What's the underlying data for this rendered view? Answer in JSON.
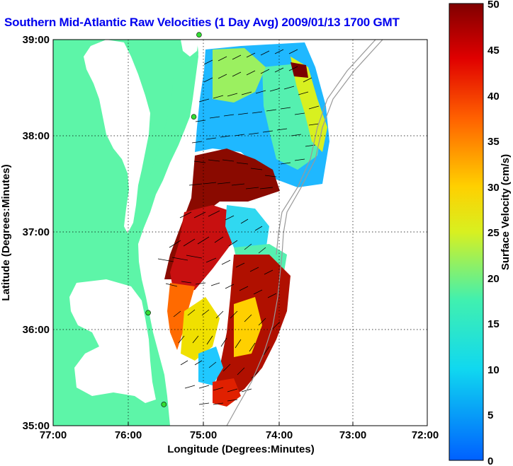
{
  "title": "Southern Mid-Atlantic Raw Velocities (1 Day Avg) 2009/01/13 1700 GMT",
  "axes": {
    "xlabel": "Longitude (Degrees:Minutes)",
    "ylabel": "Latitude (Degrees:Minutes)",
    "xticks": [
      "77:00",
      "76:00",
      "75:00",
      "74:00",
      "73:00",
      "72:00"
    ],
    "yticks": [
      "39:00",
      "38:00",
      "37:00",
      "36:00",
      "35:00"
    ]
  },
  "colorbar": {
    "label": "Surface Velocity (cm/s)",
    "ticks": [
      "50",
      "45",
      "40",
      "35",
      "30",
      "25",
      "20",
      "15",
      "10",
      "5",
      "0"
    ],
    "min": 0,
    "max": 50
  },
  "colors": {
    "title": "#0000ee",
    "land": "#5df5a8",
    "water": "#ffffff",
    "station": "#33dd33"
  },
  "stations": [
    {
      "lon": -75.05,
      "lat": 39.05
    },
    {
      "lon": -75.12,
      "lat": 38.2
    },
    {
      "lon": -75.73,
      "lat": 36.17
    },
    {
      "lon": -75.52,
      "lat": 35.22
    }
  ]
}
